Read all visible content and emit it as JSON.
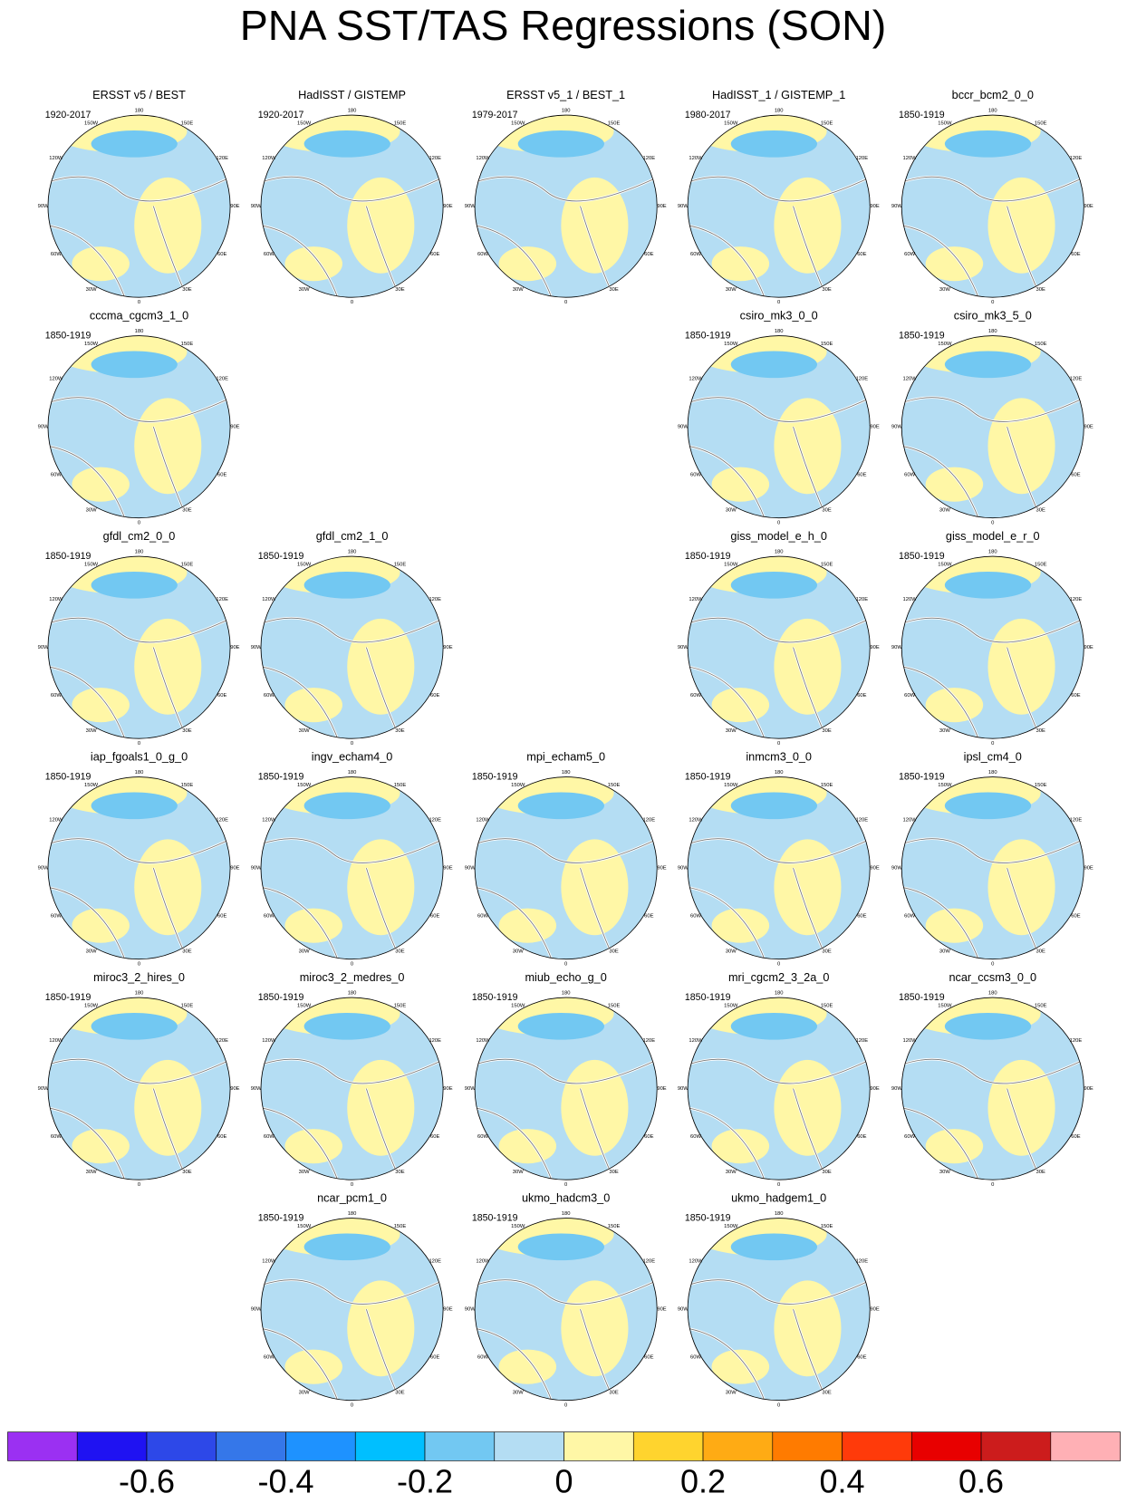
{
  "title": "PNA SST/TAS Regressions (SON)",
  "lon_labels": [
    "0",
    "30E",
    "60E",
    "90E",
    "120E",
    "150E",
    "180",
    "150W",
    "120W",
    "90W",
    "60W",
    "30W"
  ],
  "panels": [
    {
      "title": "ERSST v5 / BEST",
      "period": "1920-2017"
    },
    {
      "title": "HadISST / GISTEMP",
      "period": "1920-2017"
    },
    {
      "title": "ERSST v5_1 / BEST_1",
      "period": "1979-2017"
    },
    {
      "title": "HadISST_1 / GISTEMP_1",
      "period": "1980-2017"
    },
    {
      "title": "bccr_bcm2_0_0",
      "period": "1850-1919"
    },
    {
      "title": "cccma_cgcm3_1_0",
      "period": "1850-1919"
    },
    {
      "title": "csiro_mk3_0_0",
      "period": "1850-1919"
    },
    {
      "title": "csiro_mk3_5_0",
      "period": "1850-1919"
    },
    {
      "title": "gfdl_cm2_0_0",
      "period": "1850-1919"
    },
    {
      "title": "gfdl_cm2_1_0",
      "period": "1850-1919"
    },
    {
      "title": "giss_model_e_h_0",
      "period": "1850-1919"
    },
    {
      "title": "giss_model_e_r_0",
      "period": "1850-1919"
    },
    {
      "title": "iap_fgoals1_0_g_0",
      "period": "1850-1919"
    },
    {
      "title": "ingv_echam4_0",
      "period": "1850-1919"
    },
    {
      "title": "mpi_echam5_0",
      "period": "1850-1919"
    },
    {
      "title": "inmcm3_0_0",
      "period": "1850-1919"
    },
    {
      "title": "ipsl_cm4_0",
      "period": "1850-1919"
    },
    {
      "title": "miroc3_2_hires_0",
      "period": "1850-1919"
    },
    {
      "title": "miroc3_2_medres_0",
      "period": "1850-1919"
    },
    {
      "title": "miub_echo_g_0",
      "period": "1850-1919"
    },
    {
      "title": "mri_cgcm2_3_2a_0",
      "period": "1850-1919"
    },
    {
      "title": "ncar_ccsm3_0_0",
      "period": "1850-1919"
    },
    {
      "title": "ncar_pcm1_0",
      "period": "1850-1919"
    },
    {
      "title": "ukmo_hadcm3_0",
      "period": "1850-1919"
    },
    {
      "title": "ukmo_hadgem1_0",
      "period": "1850-1919"
    }
  ],
  "colorbar": {
    "lim": [
      -0.8,
      0.8
    ],
    "levels": [
      -0.7,
      -0.6,
      -0.5,
      -0.4,
      -0.3,
      -0.2,
      -0.1,
      0,
      0.1,
      0.2,
      0.3,
      0.4,
      0.5,
      0.6,
      0.7
    ],
    "colors": [
      "#9b30f2",
      "#1f12f2",
      "#2d48e8",
      "#3577e9",
      "#1e92ff",
      "#00bfff",
      "#72c8f2",
      "#b4ddf3",
      "#fff7a6",
      "#ffd42e",
      "#ffab14",
      "#ff7b00",
      "#ff3a0a",
      "#e80000",
      "#cc1c1c",
      "#ffb0b5"
    ],
    "ticks": [
      -0.6,
      -0.4,
      -0.2,
      0,
      0.2,
      0.4,
      0.6
    ]
  }
}
